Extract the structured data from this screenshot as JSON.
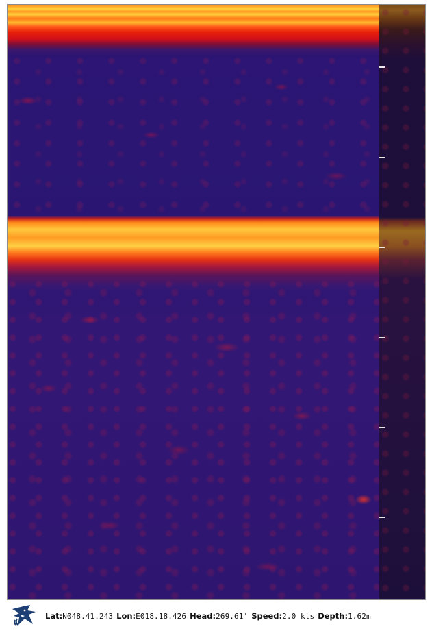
{
  "status": {
    "lat_label": "Lat:",
    "lat_value": "N048.41.243",
    "lon_label": "Lon:",
    "lon_value": "E018.18.426",
    "head_label": "Head:",
    "head_value": "269.61'",
    "speed_label": "Speed:",
    "speed_value": "2.0 kts",
    "depth_label": "Depth:",
    "depth_value": "1.62m"
  },
  "icons": {
    "logo": "shark-logo-icon"
  },
  "colors": {
    "water": "#2a1672",
    "echo_strong": "#ffd23a",
    "echo_mid": "#ff7a18",
    "echo_weak": "#e8200a",
    "history_strip": "#1e0f3a",
    "tick": "#e9e9e9"
  }
}
